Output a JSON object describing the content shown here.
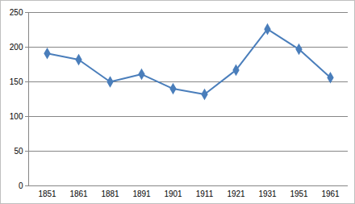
{
  "chart_data": {
    "type": "line",
    "categories": [
      "1851",
      "1861",
      "1881",
      "1891",
      "1901",
      "1911",
      "1921",
      "1931",
      "1951",
      "1961"
    ],
    "values": [
      191,
      182,
      150,
      161,
      140,
      132,
      167,
      226,
      197,
      156
    ],
    "color": "#4a7ebb",
    "marker": "diamond",
    "ylim": [
      0,
      250
    ],
    "yticks": [
      0,
      50,
      100,
      150,
      200,
      250
    ],
    "grid": true
  }
}
